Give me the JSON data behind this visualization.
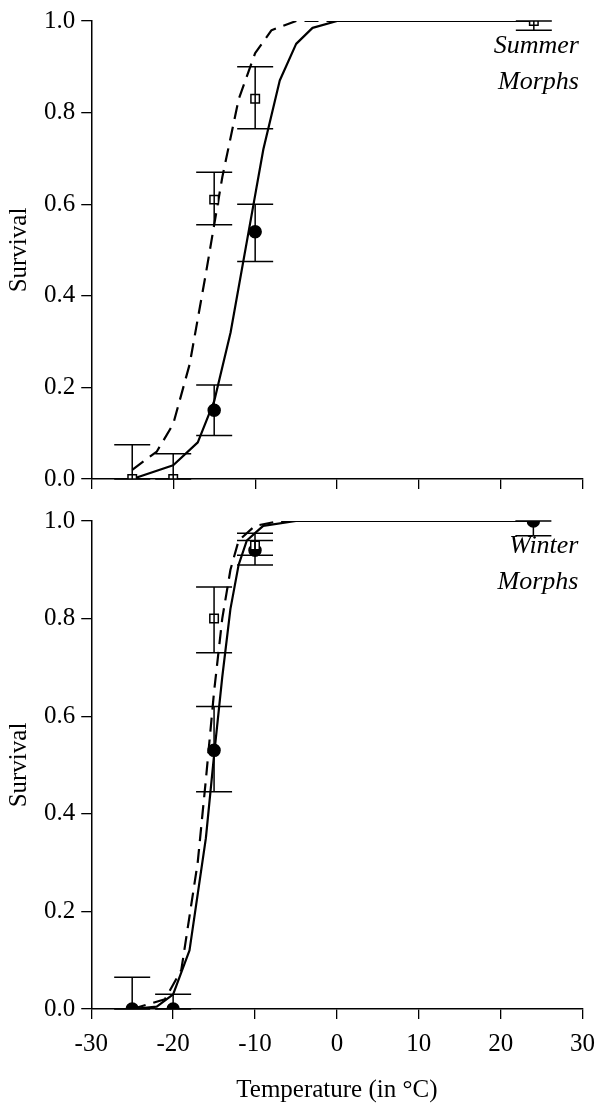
{
  "chart_data": [
    {
      "type": "scatter",
      "ylabel": "Survival",
      "annotations": [
        "Summer Morphs"
      ],
      "xlim": [
        -30,
        30
      ],
      "xticks": [
        -30,
        -20,
        -10,
        0,
        10,
        20,
        30
      ],
      "ylim": [
        0,
        1
      ],
      "yticks": [
        {
          "value": 0,
          "label": "0.0"
        },
        {
          "value": 0.2,
          "label": "0.2"
        },
        {
          "value": 0.4,
          "label": "0.4"
        },
        {
          "value": 0.6,
          "label": "0.6"
        },
        {
          "value": 0.8,
          "label": "0.8"
        },
        {
          "value": 1,
          "label": "1.0"
        }
      ],
      "tick_labels": "y",
      "grid": false,
      "series": [
        {
          "type": "line",
          "color": "#000000",
          "line_style": "dashed",
          "marker": "none",
          "x": [
            -25,
            -22,
            -20,
            -18,
            -16,
            -14,
            -12,
            -10,
            -8,
            -5,
            23.5
          ],
          "values": [
            0.02,
            0.06,
            0.12,
            0.25,
            0.45,
            0.66,
            0.83,
            0.93,
            0.98,
            1,
            1
          ]
        },
        {
          "type": "line",
          "color": "#000000",
          "line_style": "solid",
          "marker": "none",
          "x": [
            -25,
            -20,
            -17,
            -15,
            -13,
            -11,
            -9,
            -7,
            -5,
            -3,
            0,
            23.5
          ],
          "values": [
            0,
            0.03,
            0.08,
            0.17,
            0.32,
            0.52,
            0.72,
            0.87,
            0.95,
            0.985,
            1,
            1
          ]
        },
        {
          "color": "#000000",
          "marker": "circle",
          "x": [
            -15,
            -10
          ],
          "values": [
            0.15,
            0.54
          ],
          "errors": [
            [
              0.095,
              0.205
            ],
            [
              0.475,
              0.6
            ]
          ]
        },
        {
          "color": "#000000",
          "marker": "square",
          "x": [
            -25,
            -20,
            -15,
            -10,
            24
          ],
          "values": [
            0,
            0,
            0.61,
            0.83,
            1
          ],
          "errors": [
            [
              0,
              0.075
            ],
            [
              0,
              0.055
            ],
            [
              0.555,
              0.67
            ],
            [
              0.765,
              0.9
            ],
            [
              0.98,
              1
            ]
          ]
        }
      ]
    },
    {
      "type": "scatter",
      "xlabel": "Temperature (in °C)",
      "ylabel": "Survival",
      "annotations": [
        "Winter Morphs"
      ],
      "xlim": [
        -30,
        30
      ],
      "xticks": [
        -30,
        -20,
        -10,
        0,
        10,
        20,
        30
      ],
      "ylim": [
        0,
        1
      ],
      "yticks": [
        {
          "value": 0,
          "label": "0.0"
        },
        {
          "value": 0.2,
          "label": "0.2"
        },
        {
          "value": 0.4,
          "label": "0.4"
        },
        {
          "value": 0.6,
          "label": "0.6"
        },
        {
          "value": 0.8,
          "label": "0.8"
        },
        {
          "value": 1,
          "label": "1.0"
        }
      ],
      "grid": false,
      "series": [
        {
          "type": "line",
          "color": "#000000",
          "line_style": "dashed",
          "marker": "none",
          "x": [
            -25,
            -21,
            -19,
            -17,
            -16,
            -15,
            -14,
            -13,
            -12,
            -10,
            -7,
            24
          ],
          "values": [
            0,
            0.02,
            0.08,
            0.3,
            0.47,
            0.65,
            0.8,
            0.9,
            0.96,
            0.99,
            1,
            1
          ]
        },
        {
          "type": "line",
          "color": "#000000",
          "line_style": "solid",
          "marker": "none",
          "x": [
            -25,
            -22,
            -20,
            -18,
            -16,
            -15,
            -14,
            -13,
            -12,
            -11,
            -9,
            -5,
            24
          ],
          "values": [
            0,
            0.005,
            0.03,
            0.12,
            0.35,
            0.52,
            0.68,
            0.82,
            0.91,
            0.96,
            0.99,
            1,
            1
          ]
        },
        {
          "color": "#000000",
          "marker": "square",
          "x": [
            -15,
            -10
          ],
          "values": [
            0.8,
            0.95
          ],
          "errors": [
            [
              0.73,
              0.865
            ],
            [
              0.93,
              0.975
            ]
          ]
        },
        {
          "color": "#000000",
          "marker": "circle",
          "x": [
            -25,
            -20,
            -15,
            -10,
            24
          ],
          "values": [
            0,
            0,
            0.53,
            0.94,
            1
          ],
          "errors": [
            [
              0,
              0.065
            ],
            [
              0,
              0.03
            ],
            [
              0.445,
              0.62
            ],
            [
              0.91,
              0.96
            ],
            [
              0.97,
              1
            ]
          ]
        }
      ]
    }
  ]
}
